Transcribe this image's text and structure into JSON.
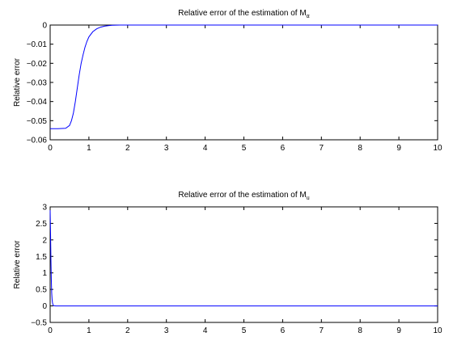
{
  "chart_data": [
    {
      "type": "line",
      "title": "Relative error of the estimation of M",
      "title_subscript": "α",
      "xlabel": "",
      "ylabel": "Relative error",
      "xlim": [
        0,
        10
      ],
      "ylim": [
        -0.06,
        0
      ],
      "xticks": [
        0,
        1,
        2,
        3,
        4,
        5,
        6,
        7,
        8,
        9,
        10
      ],
      "xtick_labels": [
        "0",
        "1",
        "2",
        "3",
        "4",
        "5",
        "6",
        "7",
        "8",
        "9",
        "10"
      ],
      "yticks": [
        -0.06,
        -0.05,
        -0.04,
        -0.03,
        -0.02,
        -0.01,
        0
      ],
      "ytick_labels": [
        "−0.06",
        "−0.05",
        "−0.04",
        "−0.03",
        "−0.02",
        "−0.01",
        "0"
      ],
      "grid": false,
      "line_color": "#0000ff",
      "series": [
        {
          "x": [
            0,
            0.2,
            0.4,
            0.5,
            0.55,
            0.6,
            0.65,
            0.7,
            0.75,
            0.8,
            0.85,
            0.9,
            0.95,
            1.0,
            1.1,
            1.2,
            1.3,
            1.4,
            1.5,
            1.6,
            1.8,
            2.0,
            3,
            5,
            10
          ],
          "y": [
            -0.0542,
            -0.0542,
            -0.054,
            -0.0525,
            -0.05,
            -0.046,
            -0.04,
            -0.033,
            -0.026,
            -0.02,
            -0.0155,
            -0.0115,
            -0.0085,
            -0.0062,
            -0.0035,
            -0.002,
            -0.0011,
            -0.0006,
            -0.0003,
            -0.0001,
            0,
            0,
            0,
            0,
            0
          ]
        }
      ]
    },
    {
      "type": "line",
      "title": "Relative error of the estimation of M",
      "title_subscript": "u",
      "xlabel": "",
      "ylabel": "Relative error",
      "xlim": [
        0,
        10
      ],
      "ylim": [
        -0.5,
        3
      ],
      "xticks": [
        0,
        1,
        2,
        3,
        4,
        5,
        6,
        7,
        8,
        9,
        10
      ],
      "xtick_labels": [
        "0",
        "1",
        "2",
        "3",
        "4",
        "5",
        "6",
        "7",
        "8",
        "9",
        "10"
      ],
      "yticks": [
        -0.5,
        0,
        0.5,
        1,
        1.5,
        2,
        2.5,
        3
      ],
      "ytick_labels": [
        "−0.5",
        "0",
        "0.5",
        "1",
        "1.5",
        "2",
        "2.5",
        "3"
      ],
      "grid": false,
      "line_color": "#0000ff",
      "series": [
        {
          "x": [
            0,
            0.01,
            0.02,
            0.03,
            0.04,
            0.05,
            0.06,
            0.07,
            0.08,
            0.1,
            0.15,
            0.3,
            1,
            10
          ],
          "y": [
            2.9,
            2.2,
            1.4,
            0.8,
            0.4,
            0.2,
            0.1,
            0.05,
            0.02,
            0.005,
            0,
            0,
            0,
            0
          ]
        }
      ]
    }
  ]
}
